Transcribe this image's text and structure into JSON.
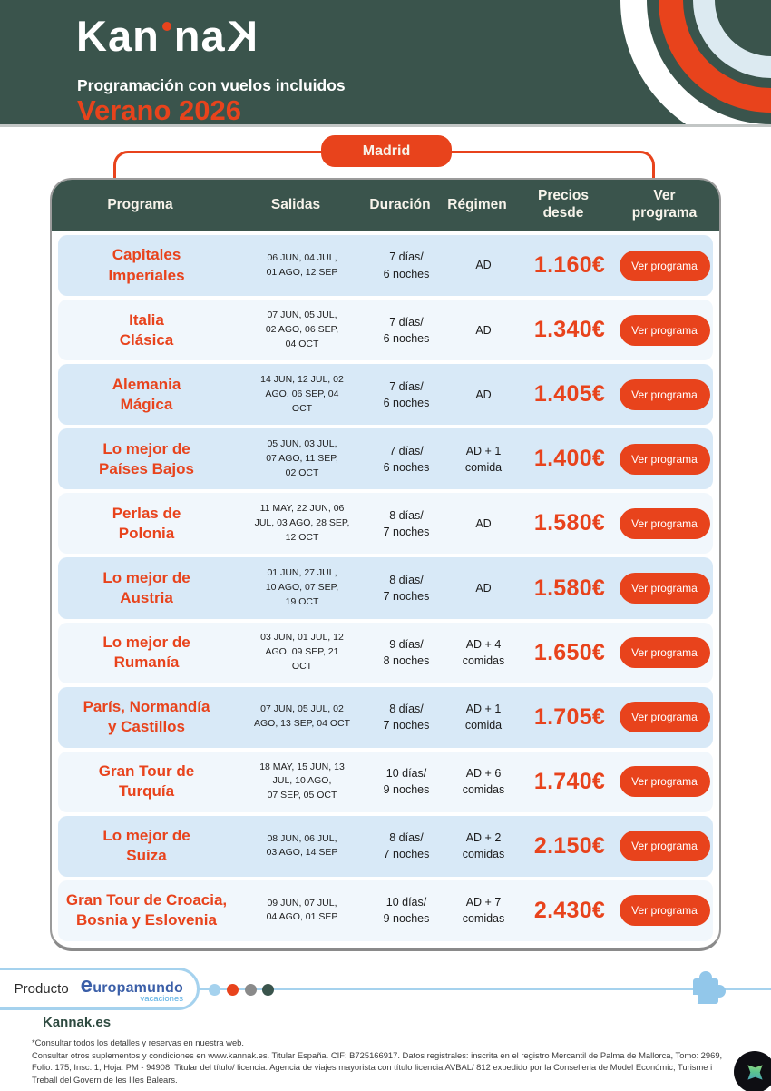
{
  "theme": {
    "green": "#3A544C",
    "red": "#E8431C",
    "row_blue": "#D8E9F7",
    "row_pale": "#F1F7FC",
    "light_blue": "#A5D2EE"
  },
  "header": {
    "logo": {
      "left": "Kan",
      "mid": "na",
      "right": "K"
    },
    "subtitle": "Programación con vuelos incluidos",
    "season": "Verano 2026"
  },
  "origin_badge": {
    "label": "Madrid"
  },
  "table": {
    "columns": [
      "Programa",
      "Salidas",
      "Duración",
      "Régimen",
      "Precios desde",
      "Ver programa"
    ],
    "cta_label": "Ver programa",
    "rows": [
      {
        "programa": "Capitales\nImperiales",
        "salidas": "06 JUN, 04 JUL,\n01 AGO, 12 SEP",
        "duracion": "7 días/\n6 noches",
        "regimen": "AD",
        "precio": "1.160€",
        "shaded": true
      },
      {
        "programa": "Italia\nClásica",
        "salidas": "07 JUN, 05 JUL,\n02 AGO, 06 SEP,\n04 OCT",
        "duracion": "7 días/\n6 noches",
        "regimen": "AD",
        "precio": "1.340€",
        "shaded": false
      },
      {
        "programa": "Alemania\nMágica",
        "salidas": "14 JUN, 12 JUL, 02\nAGO, 06 SEP, 04\nOCT",
        "duracion": "7 días/\n6 noches",
        "regimen": "AD",
        "precio": "1.405€",
        "shaded": true
      },
      {
        "programa": "Lo mejor de\nPaíses Bajos",
        "salidas": "05 JUN, 03 JUL,\n07 AGO, 11 SEP,\n02 OCT",
        "duracion": "7 días/\n6 noches",
        "regimen": "AD + 1\ncomida",
        "precio": "1.400€",
        "shaded": true
      },
      {
        "programa": "Perlas de\nPolonia",
        "salidas": "11 MAY, 22 JUN, 06\nJUL, 03 AGO, 28 SEP,\n12 OCT",
        "duracion": "8 días/\n7 noches",
        "regimen": "AD",
        "precio": "1.580€",
        "shaded": false
      },
      {
        "programa": "Lo mejor de\nAustria",
        "salidas": "01 JUN, 27 JUL,\n10 AGO, 07 SEP,\n19 OCT",
        "duracion": "8 días/\n7 noches",
        "regimen": "AD",
        "precio": "1.580€",
        "shaded": true
      },
      {
        "programa": "Lo mejor de\nRumanía",
        "salidas": "03 JUN, 01 JUL, 12\nAGO, 09 SEP, 21\nOCT",
        "duracion": "9 días/\n8 noches",
        "regimen": "AD + 4\ncomidas",
        "precio": "1.650€",
        "shaded": false
      },
      {
        "programa": "París, Normandía\ny Castillos",
        "salidas": "07 JUN, 05 JUL, 02\nAGO, 13 SEP, 04 OCT",
        "duracion": "8 días/\n7 noches",
        "regimen": "AD + 1\ncomida",
        "precio": "1.705€",
        "shaded": true
      },
      {
        "programa": "Gran Tour de\nTurquía",
        "salidas": "18 MAY, 15 JUN, 13\nJUL, 10 AGO,\n07 SEP, 05 OCT",
        "duracion": "10 días/\n9 noches",
        "regimen": "AD + 6\ncomidas",
        "precio": "1.740€",
        "shaded": false
      },
      {
        "programa": "Lo mejor de\nSuiza",
        "salidas": "08 JUN, 06 JUL,\n03 AGO, 14 SEP",
        "duracion": "8 días/\n7 noches",
        "regimen": "AD + 2\ncomidas",
        "precio": "2.150€",
        "shaded": true
      },
      {
        "programa": "Gran Tour de Croacia,\nBosnia y Eslovenia",
        "salidas": "09 JUN, 07 JUL,\n04 AGO, 01 SEP",
        "duracion": "10 días/\n9 noches",
        "regimen": "AD + 7\ncomidas",
        "precio": "2.430€",
        "shaded": false
      }
    ]
  },
  "footer": {
    "product_label": "Producto",
    "partner": {
      "name": "europamundo",
      "tagline": "vacaciones"
    },
    "site": "Kannak.es",
    "note": "*Consultar todos los detalles y reservas en nuestra web.",
    "legal": "Consultar otros suplementos y condiciones en www.kannak.es. Titular España. CIF: B725166917. Datos registrales: inscrita en el registro Mercantil de Palma de Mallorca, Tomo: 2969, Folio: 175, Insc. 1, Hoja: PM - 94908. Titular del título/ licencia: Agencia de viajes mayorista con título licencia AVBAL/ 812 expedido por la Conselleria de Model Económic, Turisme i Treball del Govern de les Illes Balears."
  }
}
